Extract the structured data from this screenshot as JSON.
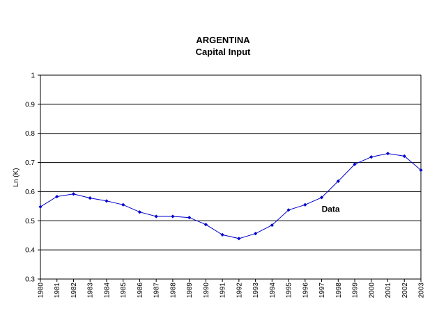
{
  "chart_data": {
    "type": "line",
    "title": "ARGENTINA",
    "subtitle": "Capital Input",
    "ylabel": "Ln (K)",
    "xlabel": "",
    "ylim": [
      0.3,
      1
    ],
    "yticks": [
      "0.3",
      "0.4",
      "0.5",
      "0.6",
      "0.7",
      "0.8",
      "0.9",
      "1"
    ],
    "grid": "horizontal",
    "x": [
      "1980",
      "1981",
      "1982",
      "1983",
      "1984",
      "1985",
      "1986",
      "1987",
      "1988",
      "1989",
      "1990",
      "1991",
      "1992",
      "1993",
      "1994",
      "1995",
      "1996",
      "1997",
      "1998",
      "1999",
      "2000",
      "2001",
      "2002",
      "2003"
    ],
    "series": [
      {
        "name": "Data",
        "color": "#0000cc",
        "values": [
          0.548,
          0.583,
          0.592,
          0.578,
          0.568,
          0.555,
          0.53,
          0.515,
          0.515,
          0.511,
          0.487,
          0.452,
          0.439,
          0.456,
          0.485,
          0.537,
          0.555,
          0.58,
          0.636,
          0.694,
          0.719,
          0.731,
          0.722,
          0.674
        ]
      }
    ],
    "annotations": [
      {
        "text": "Data",
        "x": "1997",
        "y": 0.54
      }
    ]
  }
}
